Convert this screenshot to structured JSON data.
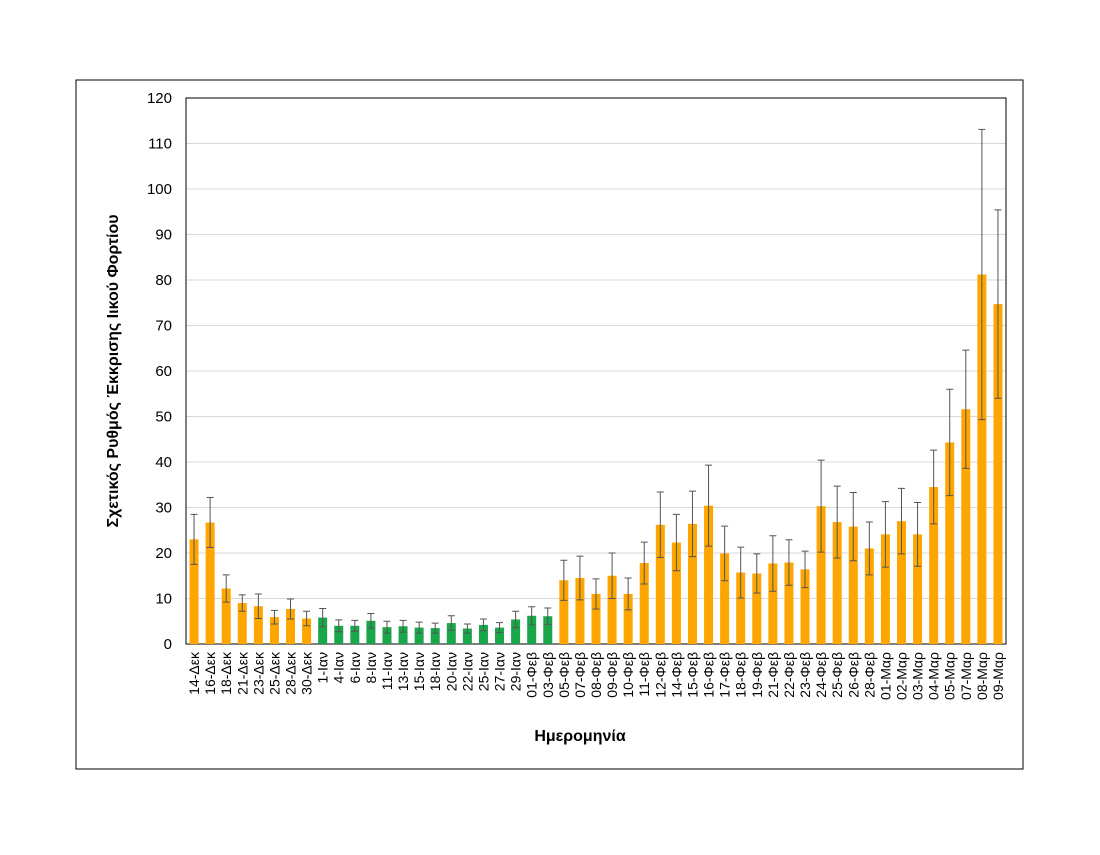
{
  "chart_data": {
    "type": "bar",
    "x_label": "Ημερομηνία",
    "y_label": "Σχετικός Ρυθμός Έκκρισης Ιικού Φορτίου",
    "categories": [
      "14-Δεκ",
      "16-Δεκ",
      "18-Δεκ",
      "21-Δεκ",
      "23-Δεκ",
      "25-Δεκ",
      "28-Δεκ",
      "30-Δεκ",
      "1-Ιαν",
      "4-Ιαν",
      "6-Ιαν",
      "8-Ιαν",
      "11-Ιαν",
      "13-Ιαν",
      "15-Ιαν",
      "18-Ιαν",
      "20-Ιαν",
      "22-Ιαν",
      "25-Ιαν",
      "27-Ιαν",
      "29-Ιαν",
      "01-Φεβ",
      "03-Φεβ",
      "05-Φεβ",
      "07-Φεβ",
      "08-Φεβ",
      "09-Φεβ",
      "10-Φεβ",
      "11-Φεβ",
      "12-Φεβ",
      "14-Φεβ",
      "15-Φεβ",
      "16-Φεβ",
      "17-Φεβ",
      "18-Φεβ",
      "19-Φεβ",
      "21-Φεβ",
      "22-Φεβ",
      "23-Φεβ",
      "24-Φεβ",
      "25-Φεβ",
      "26-Φεβ",
      "28-Φεβ",
      "01-Μαρ",
      "02-Μαρ",
      "03-Μαρ",
      "04-Μαρ",
      "05-Μαρ",
      "07-Μαρ",
      "08-Μαρ",
      "09-Μαρ"
    ],
    "values": [
      23,
      26.7,
      12.2,
      9,
      8.3,
      5.9,
      7.7,
      5.6,
      5.8,
      4,
      4,
      5.1,
      3.7,
      3.9,
      3.6,
      3.5,
      4.6,
      3.4,
      4.2,
      3.6,
      5.4,
      6.2,
      6.1,
      14,
      14.5,
      11,
      15,
      11,
      17.8,
      26.2,
      22.3,
      26.4,
      30.4,
      19.9,
      15.7,
      15.5,
      17.7,
      17.9,
      16.4,
      30.3,
      26.8,
      25.8,
      21,
      24.1,
      27,
      24.1,
      34.5,
      44.3,
      51.6,
      81.2,
      74.7
    ],
    "errors": [
      5.5,
      5.5,
      3,
      1.8,
      2.7,
      1.5,
      2.2,
      1.6,
      2,
      1.3,
      1.2,
      1.6,
      1.3,
      1.3,
      1.2,
      1.1,
      1.6,
      1,
      1.3,
      1.1,
      1.8,
      2,
      1.8,
      4.4,
      4.8,
      3.3,
      5,
      3.5,
      4.6,
      7.2,
      6.2,
      7.2,
      8.9,
      6,
      5.6,
      4.3,
      6.1,
      5,
      4,
      10.1,
      7.9,
      7.5,
      5.8,
      7.2,
      7.2,
      7,
      8.1,
      11.7,
      13,
      31.9,
      20.7
    ],
    "colors": [
      "#ffa500",
      "#ffa500",
      "#ffa500",
      "#ffa500",
      "#ffa500",
      "#ffa500",
      "#ffa500",
      "#ffa500",
      "#1aa64a",
      "#1aa64a",
      "#1aa64a",
      "#1aa64a",
      "#1aa64a",
      "#1aa64a",
      "#1aa64a",
      "#1aa64a",
      "#1aa64a",
      "#1aa64a",
      "#1aa64a",
      "#1aa64a",
      "#1aa64a",
      "#1aa64a",
      "#1aa64a",
      "#ffa500",
      "#ffa500",
      "#ffa500",
      "#ffa500",
      "#ffa500",
      "#ffa500",
      "#ffa500",
      "#ffa500",
      "#ffa500",
      "#ffa500",
      "#ffa500",
      "#ffa500",
      "#ffa500",
      "#ffa500",
      "#ffa500",
      "#ffa500",
      "#ffa500",
      "#ffa500",
      "#ffa500",
      "#ffa500",
      "#ffa500",
      "#ffa500",
      "#ffa500",
      "#ffa500",
      "#ffa500",
      "#ffa500",
      "#ffa500",
      "#ffa500"
    ],
    "ylim": [
      0,
      120
    ],
    "yticks": [
      0,
      10,
      20,
      30,
      40,
      50,
      60,
      70,
      80,
      90,
      100,
      110,
      120
    ],
    "grid": true
  }
}
